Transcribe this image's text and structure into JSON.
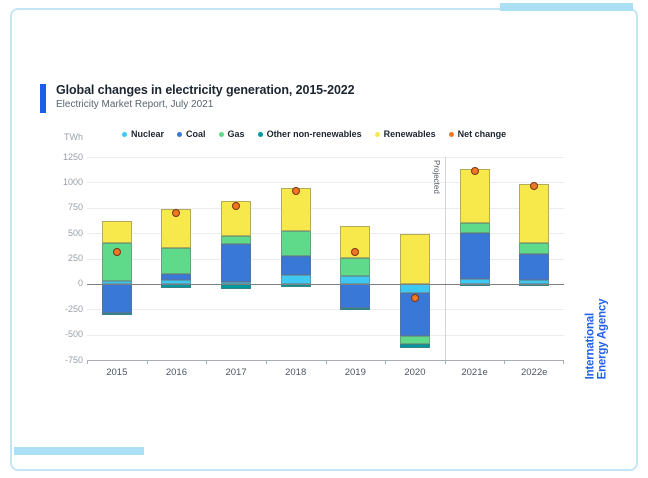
{
  "header": {
    "title": "Global changes in electricity generation, 2015-2022",
    "subtitle": "Electricity Market Report, July 2021"
  },
  "branding": {
    "logo_line1": "International",
    "logo_line2": "Energy Agency",
    "logo_color": "#2563e8",
    "accent_color": "#1f5be8",
    "frame_color": "#c3e6f4",
    "deco_color": "#abdff3"
  },
  "chart_data": {
    "type": "bar",
    "stacked": true,
    "title": "Global changes in electricity generation, 2015-2022",
    "subtitle": "Electricity Market Report, July 2021",
    "unit": "TWh",
    "categories": [
      "2015",
      "2016",
      "2017",
      "2018",
      "2019",
      "2020",
      "2021e",
      "2022e"
    ],
    "series": [
      {
        "name": "Nuclear",
        "color": "#3fc8f2",
        "values": [
          33,
          40,
          15,
          83,
          74,
          -86,
          46,
          42
        ]
      },
      {
        "name": "Coal",
        "color": "#3a78d8",
        "values": [
          -290,
          55,
          375,
          193,
          -240,
          -424,
          457,
          256
        ]
      },
      {
        "name": "Gas",
        "color": "#5fd98a",
        "values": [
          370,
          260,
          85,
          246,
          179,
          -83,
          97,
          106
        ]
      },
      {
        "name": "Other non-renewables",
        "color": "#00979f",
        "values": [
          -15,
          -40,
          -55,
          -29,
          -16,
          -38,
          -17,
          -15
        ]
      },
      {
        "name": "Renewables",
        "color": "#f7e94b",
        "values": [
          215,
          385,
          345,
          423,
          317,
          487,
          531,
          577
        ]
      }
    ],
    "net_change": {
      "name": "Net change",
      "color": "#ee7624",
      "ring_color": "#7d3514",
      "values": [
        313,
        700,
        765,
        916,
        314,
        -144,
        1114,
        966
      ]
    },
    "ylim": [
      -750,
      1250
    ],
    "yticks": [
      1250,
      1000,
      750,
      500,
      250,
      0,
      -250,
      -500,
      -750
    ],
    "grid": true,
    "legend_position": "top",
    "projected": {
      "label": "Projected",
      "before_category": "2021e"
    }
  }
}
